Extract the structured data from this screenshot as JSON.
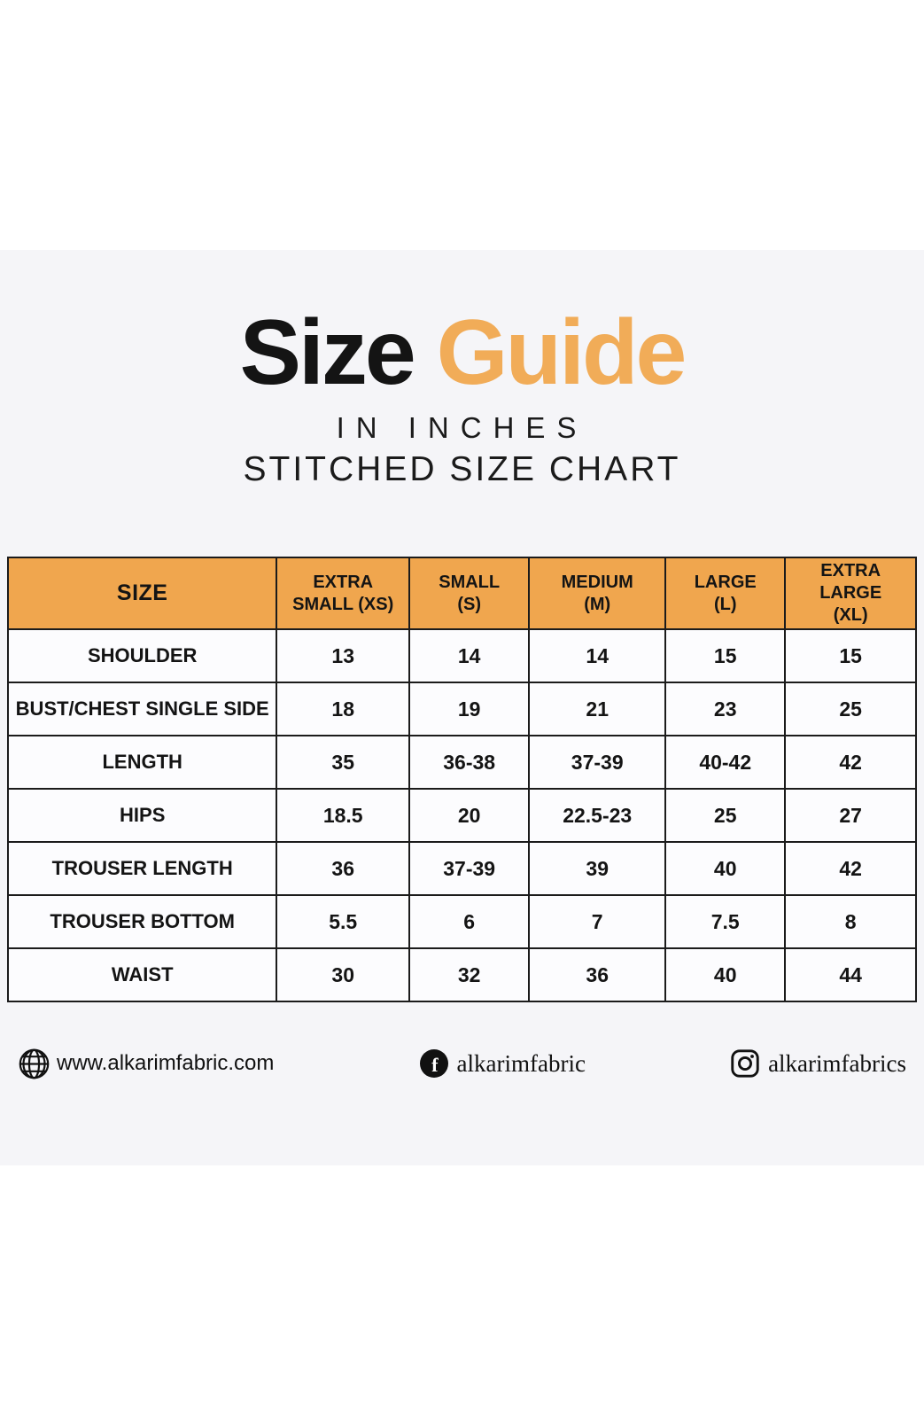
{
  "page": {
    "background": "#FFFFFF",
    "content_background": "#F5F5F8"
  },
  "title": {
    "word_black": "Size",
    "word_orange": "Guide",
    "subtitle_line1": "IN INCHES",
    "subtitle_line2": "STITCHED SIZE CHART",
    "orange_hex": "#F1AC58",
    "black_hex": "#141414"
  },
  "chart_data": {
    "type": "table",
    "title": "Size Guide in Inches — Stitched Size Chart",
    "header_background": "#F0A64E",
    "border_color": "#1B1B1B",
    "columns": [
      "SIZE",
      "EXTRA\nSMALL (XS)",
      "SMALL\n(S)",
      "MEDIUM\n(M)",
      "LARGE\n(L)",
      "EXTRA LARGE\n(XL)"
    ],
    "rows": [
      {
        "label": "SHOULDER",
        "values": [
          "13",
          "14",
          "14",
          "15",
          "15"
        ]
      },
      {
        "label": "BUST/CHEST SINGLE SIDE",
        "values": [
          "18",
          "19",
          "21",
          "23",
          "25"
        ]
      },
      {
        "label": "LENGTH",
        "values": [
          "35",
          "36-38",
          "37-39",
          "40-42",
          "42"
        ]
      },
      {
        "label": "HIPS",
        "values": [
          "18.5",
          "20",
          "22.5-23",
          "25",
          "27"
        ]
      },
      {
        "label": "TROUSER LENGTH",
        "values": [
          "36",
          "37-39",
          "39",
          "40",
          "42"
        ]
      },
      {
        "label": "TROUSER BOTTOM",
        "values": [
          "5.5",
          "6",
          "7",
          "7.5",
          "8"
        ]
      },
      {
        "label": "WAIST",
        "values": [
          "30",
          "32",
          "36",
          "40",
          "44"
        ]
      }
    ]
  },
  "footer": {
    "website": {
      "icon": "globe-icon",
      "text": "www.alkarimfabric.com"
    },
    "facebook": {
      "icon": "facebook-icon",
      "text": "alkarimfabric"
    },
    "instagram": {
      "icon": "instagram-icon",
      "text": "alkarimfabrics"
    }
  }
}
